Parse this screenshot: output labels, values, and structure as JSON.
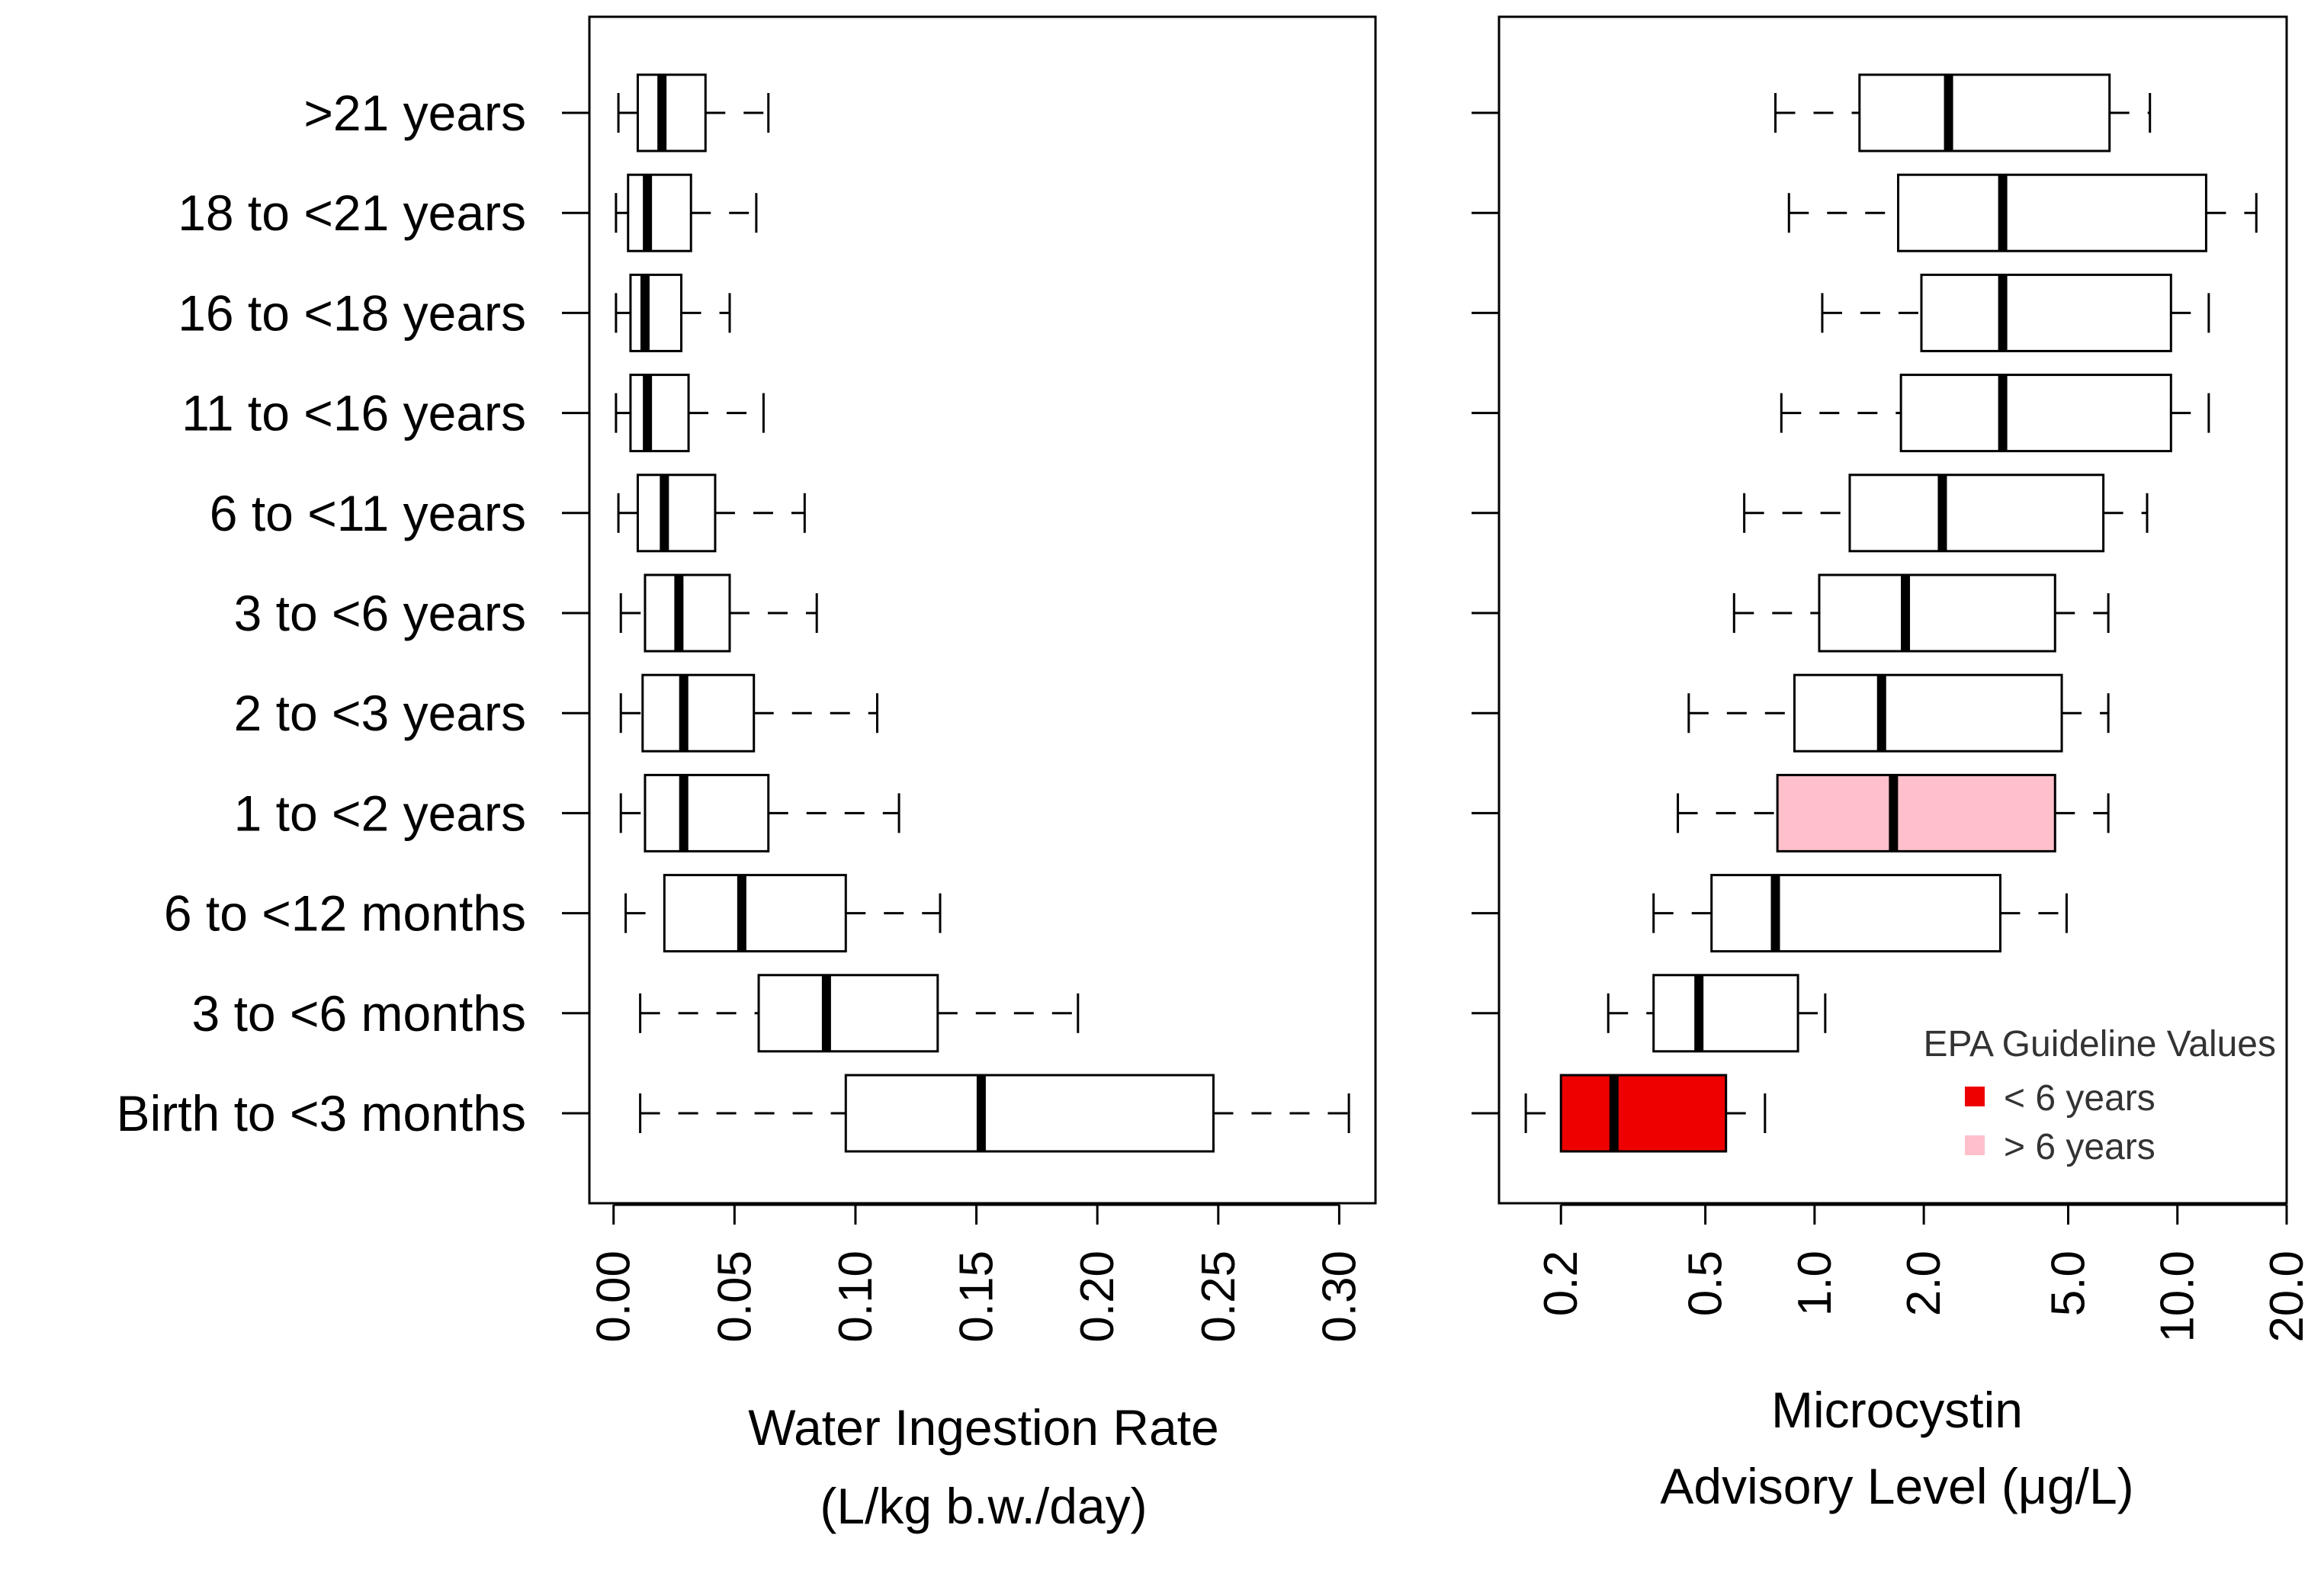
{
  "chart_data": [
    {
      "type": "boxplot",
      "orientation": "horizontal",
      "xlabel": "Water Ingestion Rate",
      "xlabel_line2": "(L/kg b.w./day)",
      "scale": "linear",
      "xlim": [
        -0.01,
        0.315
      ],
      "xticks": [
        0,
        0.05,
        0.1,
        0.15,
        0.2,
        0.25,
        0.3
      ],
      "xtick_labels": [
        "0.00",
        "0.05",
        "0.10",
        "0.15",
        "0.20",
        "0.25",
        "0.30"
      ],
      "categories": [
        ">21 years",
        "18 to <21 years",
        "16 to <18 years",
        "11 to <16 years",
        "6 to <11 years",
        "3 to <6 years",
        "2 to <3 years",
        "1 to <2 years",
        "6 to <12 months",
        "3 to <6 months",
        "Birth to <3 months"
      ],
      "boxes": [
        {
          "whisker_low": 0.002,
          "q1": 0.01,
          "median": 0.02,
          "q3": 0.038,
          "whisker_high": 0.064
        },
        {
          "whisker_low": 0.001,
          "q1": 0.006,
          "median": 0.014,
          "q3": 0.032,
          "whisker_high": 0.059
        },
        {
          "whisker_low": 0.001,
          "q1": 0.007,
          "median": 0.013,
          "q3": 0.028,
          "whisker_high": 0.048
        },
        {
          "whisker_low": 0.001,
          "q1": 0.007,
          "median": 0.014,
          "q3": 0.031,
          "whisker_high": 0.062
        },
        {
          "whisker_low": 0.002,
          "q1": 0.01,
          "median": 0.021,
          "q3": 0.042,
          "whisker_high": 0.079
        },
        {
          "whisker_low": 0.003,
          "q1": 0.013,
          "median": 0.027,
          "q3": 0.048,
          "whisker_high": 0.084
        },
        {
          "whisker_low": 0.003,
          "q1": 0.012,
          "median": 0.029,
          "q3": 0.058,
          "whisker_high": 0.109
        },
        {
          "whisker_low": 0.003,
          "q1": 0.013,
          "median": 0.029,
          "q3": 0.064,
          "whisker_high": 0.118
        },
        {
          "whisker_low": 0.005,
          "q1": 0.021,
          "median": 0.053,
          "q3": 0.096,
          "whisker_high": 0.135
        },
        {
          "whisker_low": 0.011,
          "q1": 0.06,
          "median": 0.088,
          "q3": 0.134,
          "whisker_high": 0.192
        },
        {
          "whisker_low": 0.011,
          "q1": 0.096,
          "median": 0.152,
          "q3": 0.248,
          "whisker_high": 0.304
        }
      ]
    },
    {
      "type": "boxplot",
      "orientation": "horizontal",
      "xlabel": "Microcystin",
      "xlabel_line2": "Advisory Level (μg/L)",
      "scale": "log",
      "xlim": [
        0.135,
        20
      ],
      "xticks": [
        0.2,
        0.5,
        1.0,
        2.0,
        5.0,
        10.0,
        20.0
      ],
      "xtick_labels": [
        "0.2",
        "0.5",
        "1.0",
        "2.0",
        "5.0",
        "10.0",
        "20.0"
      ],
      "categories": [
        ">21 years",
        "18 to <21 years",
        "16 to <18 years",
        "11 to <16 years",
        "6 to <11 years",
        "3 to <6 years",
        "2 to <3 years",
        "1 to <2 years",
        "6 to <12 months",
        "3 to <6 months",
        "Birth to <3 months"
      ],
      "boxes": [
        {
          "whisker_low": 0.78,
          "q1": 1.33,
          "median": 2.34,
          "q3": 6.5,
          "whisker_high": 8.4,
          "fill": "#ffffff"
        },
        {
          "whisker_low": 0.85,
          "q1": 1.7,
          "median": 3.3,
          "q3": 12.0,
          "whisker_high": 16.5,
          "fill": "#ffffff"
        },
        {
          "whisker_low": 1.05,
          "q1": 1.97,
          "median": 3.3,
          "q3": 9.6,
          "whisker_high": 12.2,
          "fill": "#ffffff"
        },
        {
          "whisker_low": 0.81,
          "q1": 1.73,
          "median": 3.3,
          "q3": 9.6,
          "whisker_high": 12.2,
          "fill": "#ffffff"
        },
        {
          "whisker_low": 0.64,
          "q1": 1.25,
          "median": 2.25,
          "q3": 6.25,
          "whisker_high": 8.25,
          "fill": "#ffffff"
        },
        {
          "whisker_low": 0.6,
          "q1": 1.03,
          "median": 1.78,
          "q3": 4.6,
          "whisker_high": 6.45,
          "fill": "#ffffff"
        },
        {
          "whisker_low": 0.45,
          "q1": 0.88,
          "median": 1.53,
          "q3": 4.8,
          "whisker_high": 6.45,
          "fill": "#ffffff"
        },
        {
          "whisker_low": 0.42,
          "q1": 0.79,
          "median": 1.65,
          "q3": 4.6,
          "whisker_high": 6.45,
          "fill": "#ffc0cb"
        },
        {
          "whisker_low": 0.36,
          "q1": 0.52,
          "median": 0.78,
          "q3": 3.25,
          "whisker_high": 4.95,
          "fill": "#ffffff"
        },
        {
          "whisker_low": 0.27,
          "q1": 0.36,
          "median": 0.48,
          "q3": 0.9,
          "whisker_high": 1.07,
          "fill": "#ffffff"
        },
        {
          "whisker_low": 0.16,
          "q1": 0.2,
          "median": 0.28,
          "q3": 0.57,
          "whisker_high": 0.73,
          "fill": "#ee0000"
        }
      ],
      "legend": {
        "title": "EPA Guideline Values",
        "placement": "bottom-right",
        "items": [
          {
            "label": "< 6 years",
            "color": "#ee0000"
          },
          {
            "label": "> 6 years",
            "color": "#ffc0cb"
          }
        ]
      }
    }
  ]
}
